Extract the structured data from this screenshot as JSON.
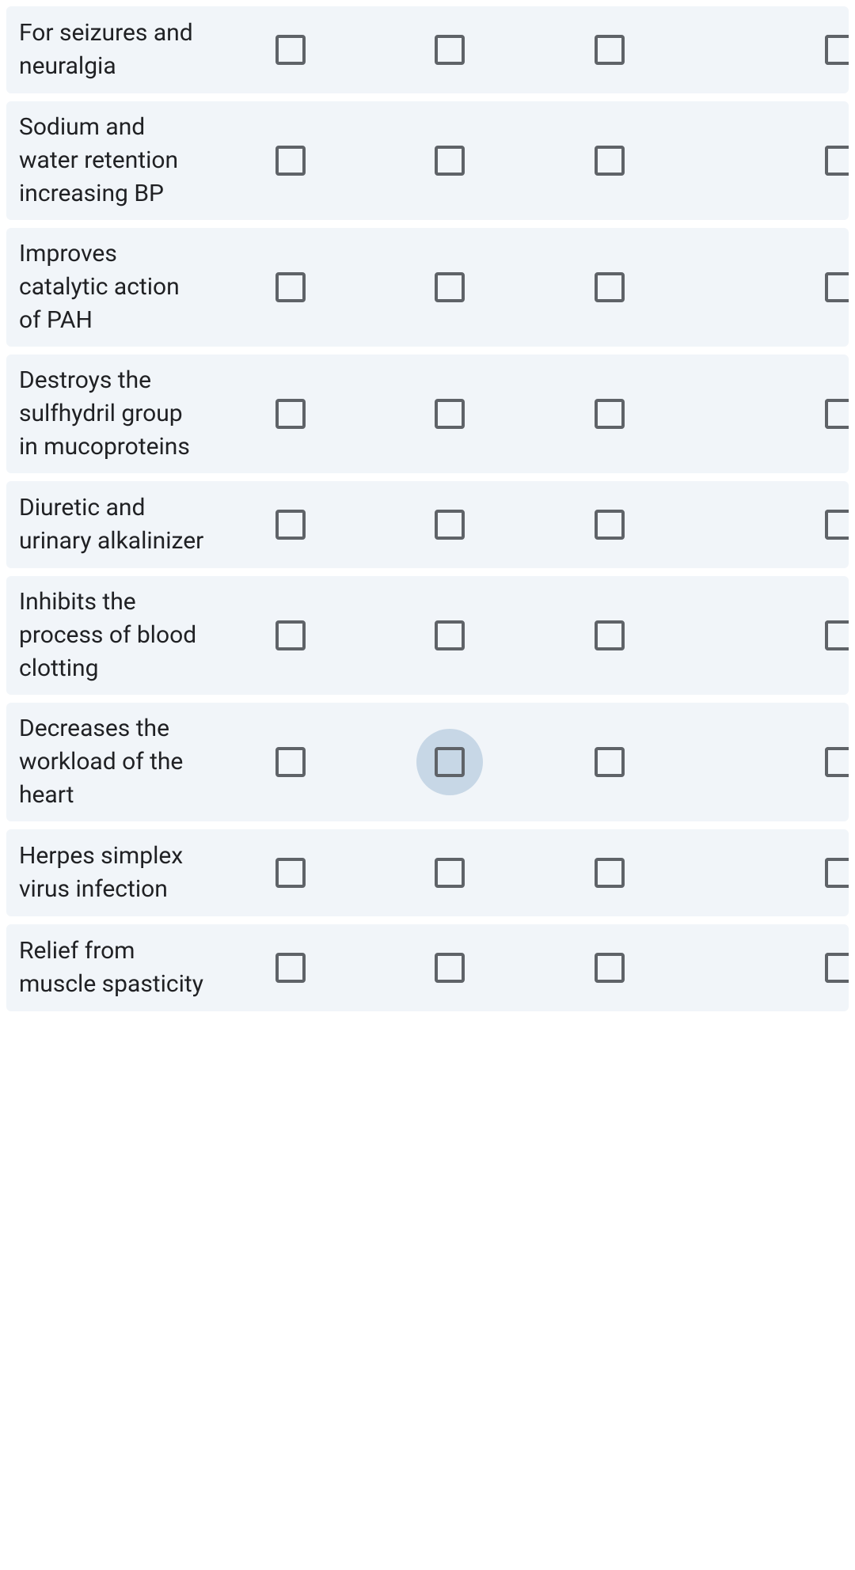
{
  "grid": {
    "row_background": "#f1f5f9",
    "checkbox_border_color": "#5f6368",
    "ripple_color": "#c7d7e6",
    "label_color": "#202124",
    "label_fontsize": 30,
    "columns": 4,
    "focused": {
      "row": 6,
      "col": 1
    },
    "rows": [
      {
        "label": "For seizures and neuralgia",
        "checked": [
          false,
          false,
          false,
          false
        ]
      },
      {
        "label": "Sodium and water retention increasing BP",
        "checked": [
          false,
          false,
          false,
          false
        ]
      },
      {
        "label": "Improves catalytic action of PAH",
        "checked": [
          false,
          false,
          false,
          false
        ]
      },
      {
        "label": "Destroys the sulfhydril group in mucoproteins",
        "checked": [
          false,
          false,
          false,
          false
        ]
      },
      {
        "label": "Diuretic and urinary alkalinizer",
        "checked": [
          false,
          false,
          false,
          false
        ]
      },
      {
        "label": "Inhibits the process of blood clotting",
        "checked": [
          false,
          false,
          false,
          false
        ]
      },
      {
        "label": "Decreases the workload of the heart",
        "checked": [
          false,
          false,
          false,
          false
        ]
      },
      {
        "label": "Herpes simplex virus infection",
        "checked": [
          false,
          false,
          false,
          false
        ]
      },
      {
        "label": "Relief from muscle spasticity",
        "checked": [
          false,
          false,
          false,
          false
        ]
      }
    ]
  }
}
